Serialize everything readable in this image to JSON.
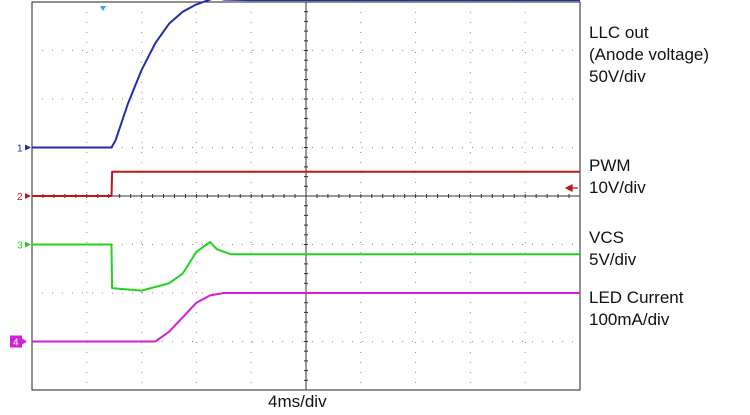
{
  "chart_data": {
    "type": "line",
    "title": "",
    "xlabel": "4ms/div",
    "ylabel": "",
    "x_unit": "ms",
    "xlim": [
      0,
      40
    ],
    "divisions": {
      "x": 10,
      "y": 8
    },
    "grid": true,
    "series": [
      {
        "key": "llc",
        "name_lines": [
          "LLC out",
          "(Anode voltage)",
          "50V/div"
        ],
        "marker": "1",
        "color": "#1f2fa8",
        "unit": "div",
        "points": [
          [
            0,
            5.0
          ],
          [
            5.8,
            5.0
          ],
          [
            6.1,
            5.15
          ],
          [
            7,
            5.9
          ],
          [
            8,
            6.6
          ],
          [
            9,
            7.15
          ],
          [
            10,
            7.55
          ],
          [
            11,
            7.8
          ],
          [
            12,
            7.95
          ],
          [
            13,
            8.05
          ],
          [
            13.4,
            8.1
          ],
          [
            14,
            8.05
          ],
          [
            16,
            8.04
          ],
          [
            40,
            8.04
          ]
        ]
      },
      {
        "key": "pwm",
        "name_lines": [
          "PWM",
          "10V/div"
        ],
        "marker": "2",
        "color": "#c0161b",
        "unit": "div",
        "points": [
          [
            0,
            4.0
          ],
          [
            5.8,
            4.0
          ],
          [
            5.85,
            4.5
          ],
          [
            40,
            4.5
          ]
        ]
      },
      {
        "key": "vcs",
        "name_lines": [
          "VCS",
          "5V/div"
        ],
        "marker": "3",
        "color": "#22d11f",
        "unit": "div",
        "points": [
          [
            0,
            3.0
          ],
          [
            5.8,
            3.0
          ],
          [
            5.85,
            2.1
          ],
          [
            8,
            2.05
          ],
          [
            10,
            2.2
          ],
          [
            11,
            2.4
          ],
          [
            12,
            2.85
          ],
          [
            13,
            3.05
          ],
          [
            13.5,
            2.9
          ],
          [
            14.5,
            2.8
          ],
          [
            40,
            2.8
          ]
        ]
      },
      {
        "key": "led",
        "name_lines": [
          "LED Current",
          "100mA/div"
        ],
        "marker": "4",
        "color": "#d21fd8",
        "unit": "div",
        "points": [
          [
            0,
            1.0
          ],
          [
            8,
            1.0
          ],
          [
            9,
            1.0
          ],
          [
            10,
            1.2
          ],
          [
            11,
            1.5
          ],
          [
            12,
            1.8
          ],
          [
            13,
            1.95
          ],
          [
            14,
            2.0
          ],
          [
            40,
            2.0
          ]
        ]
      }
    ]
  }
}
